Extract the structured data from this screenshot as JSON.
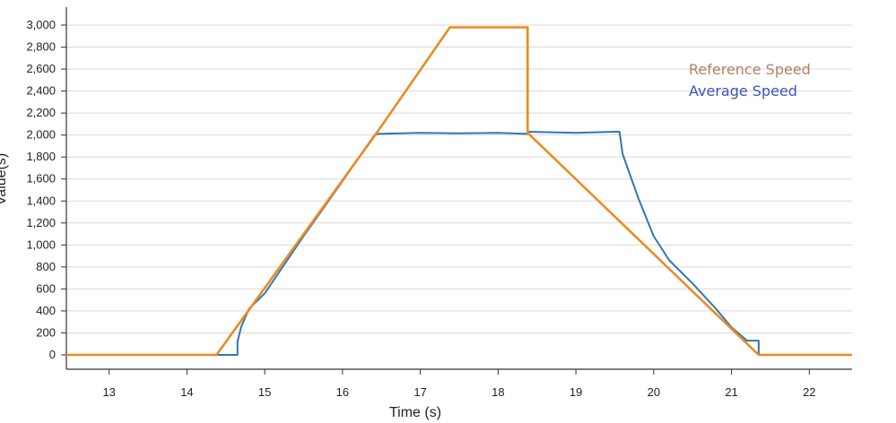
{
  "chart_data": {
    "type": "line",
    "title": "",
    "xlabel": "Time (s)",
    "ylabel": "Value(s)",
    "xlim": [
      12.45,
      22.55
    ],
    "ylim": [
      0,
      3000
    ],
    "grid": true,
    "x_ticks": [
      13,
      14,
      15,
      16,
      17,
      18,
      19,
      20,
      21,
      22
    ],
    "y_ticks": [
      0,
      200,
      400,
      600,
      800,
      1000,
      1200,
      1400,
      1600,
      1800,
      2000,
      2200,
      2400,
      2600,
      2800,
      3000
    ],
    "legend_position": "top-right",
    "series": [
      {
        "name": "Reference Speed",
        "color": "#ec8a22",
        "legend_color": "#b0826a",
        "x": [
          12.45,
          14.38,
          16.45,
          17.38,
          18.38,
          18.38,
          21.35,
          22.55
        ],
        "y": [
          0,
          0,
          2030,
          2980,
          2980,
          2020,
          0,
          0
        ]
      },
      {
        "name": "Average Speed",
        "color": "#2e78b0",
        "legend_color": "#3a56b8",
        "x": [
          14.38,
          14.65,
          14.65,
          14.7,
          14.8,
          15.0,
          15.5,
          16.0,
          16.4,
          16.45,
          17.0,
          17.5,
          18.0,
          18.38,
          18.38,
          19.0,
          19.5,
          19.56,
          19.6,
          19.8,
          20.0,
          20.2,
          20.5,
          20.8,
          21.0,
          21.2,
          21.35,
          21.35
        ],
        "y": [
          0,
          0,
          120,
          260,
          420,
          560,
          1080,
          1580,
          1990,
          2010,
          2020,
          2015,
          2020,
          2010,
          2030,
          2020,
          2030,
          2030,
          1830,
          1430,
          1080,
          860,
          650,
          420,
          250,
          130,
          130,
          0
        ]
      }
    ]
  }
}
